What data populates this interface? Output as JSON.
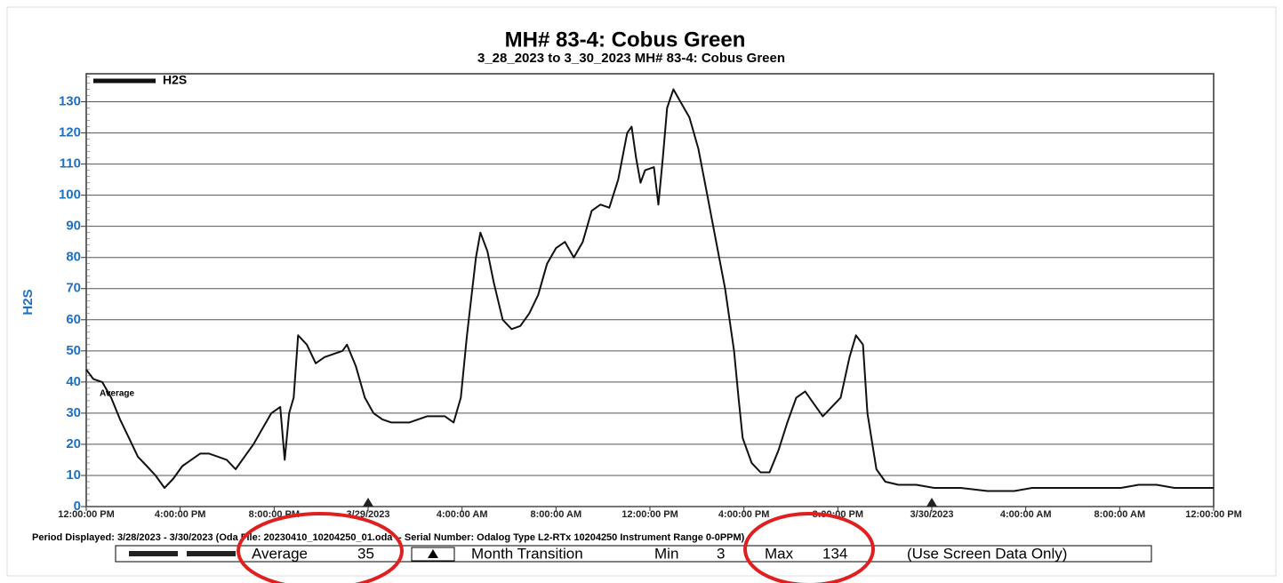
{
  "chart_data": {
    "type": "line",
    "title": "MH# 83-4: Cobus Green",
    "subtitle": "3_28_2023 to 3_30_2023 MH# 83-4: Cobus Green",
    "y_label": "H2S",
    "annotation": "Average",
    "grid": true,
    "legend": "top-left",
    "xlim": [
      0,
      48
    ],
    "ylim": [
      0,
      139
    ],
    "yticks": [
      0,
      10,
      20,
      30,
      40,
      50,
      60,
      70,
      80,
      90,
      100,
      110,
      120,
      130
    ],
    "xticks": [
      {
        "value": 0,
        "label": "12:00:00 PM"
      },
      {
        "value": 4,
        "label": "4:00:00 PM"
      },
      {
        "value": 8,
        "label": "8:00:00 PM"
      },
      {
        "value": 12,
        "label": "3/29/2023"
      },
      {
        "value": 16,
        "label": "4:00:00 AM"
      },
      {
        "value": 20,
        "label": "8:00:00 AM"
      },
      {
        "value": 24,
        "label": "12:00:00 PM"
      },
      {
        "value": 28,
        "label": "4:00:00 PM"
      },
      {
        "value": 32,
        "label": "8:00:00 PM"
      },
      {
        "value": 36,
        "label": "3/30/2023"
      },
      {
        "value": 40,
        "label": "4:00:00 AM"
      },
      {
        "value": 44,
        "label": "8:00:00 AM"
      },
      {
        "value": 48,
        "label": "12:00:00 PM"
      }
    ],
    "x": [
      0,
      0.3,
      0.68,
      1.06,
      1.44,
      1.82,
      2.2,
      2.58,
      2.95,
      3.33,
      3.71,
      4.09,
      4.47,
      4.85,
      5.23,
      5.61,
      5.98,
      6.36,
      6.74,
      7.12,
      7.5,
      7.88,
      8.26,
      8.45,
      8.64,
      8.83,
      9.02,
      9.39,
      9.77,
      10.15,
      10.53,
      10.91,
      11.1,
      11.48,
      11.86,
      12.23,
      12.61,
      12.99,
      13.37,
      13.75,
      14.13,
      14.51,
      14.89,
      15.27,
      15.64,
      15.95,
      16.21,
      16.59,
      16.78,
      17.08,
      17.35,
      17.73,
      18.11,
      18.48,
      18.86,
      19.24,
      19.62,
      20,
      20.38,
      20.76,
      21.14,
      21.52,
      21.89,
      22.27,
      22.65,
      23.03,
      23.22,
      23.41,
      23.6,
      23.79,
      24.17,
      24.36,
      24.55,
      24.73,
      25,
      25.3,
      25.68,
      26.06,
      26.44,
      26.82,
      27.2,
      27.58,
      27.77,
      27.95,
      28.33,
      28.71,
      29.09,
      29.47,
      29.85,
      30.23,
      30.61,
      30.98,
      31.36,
      31.74,
      32.12,
      32.5,
      32.77,
      33.07,
      33.26,
      33.64,
      34.02,
      34.58,
      35.34,
      36.1,
      37.23,
      38.37,
      39.51,
      40.27,
      41.78,
      42.54,
      44.05,
      44.81,
      45.57,
      46.33,
      48
    ],
    "series": [
      {
        "name": "H2S",
        "color": "#111111",
        "values": [
          44,
          41,
          40,
          35,
          28,
          22,
          16,
          13,
          10,
          6,
          9,
          13,
          15,
          17,
          17,
          16,
          15,
          12,
          16,
          20,
          25,
          30,
          32,
          15,
          30,
          35,
          55,
          52,
          46,
          48,
          49,
          50,
          52,
          45,
          35,
          30,
          28,
          27,
          27,
          27,
          28,
          29,
          29,
          29,
          27,
          35,
          55,
          80,
          88,
          82,
          72,
          60,
          57,
          58,
          62,
          68,
          78,
          83,
          85,
          80,
          85,
          95,
          97,
          96,
          105,
          120,
          122,
          112,
          104,
          108,
          109,
          97,
          112,
          128,
          134,
          130,
          125,
          115,
          100,
          85,
          70,
          50,
          35,
          22,
          14,
          11,
          11,
          18,
          27,
          35,
          37,
          33,
          29,
          32,
          35,
          48,
          55,
          52,
          30,
          12,
          8,
          7,
          7,
          6,
          6,
          5,
          5,
          6,
          6,
          6,
          6,
          7,
          7,
          6,
          6
        ]
      }
    ],
    "footer": {
      "period": "Period Displayed: 3/28/2023 - 3/30/2023  (Oda File: 20230410_10204250_01.oda  --  Serial Number: Odalog Type L2-RTx 10204250 Instrument Range 0-0PPM)",
      "average_label": "Average",
      "average": 35,
      "transition": "Month Transition",
      "min_label": "Min",
      "min": 3,
      "max_label": "Max",
      "max": 134,
      "note": "(Use Screen Data Only)"
    }
  }
}
